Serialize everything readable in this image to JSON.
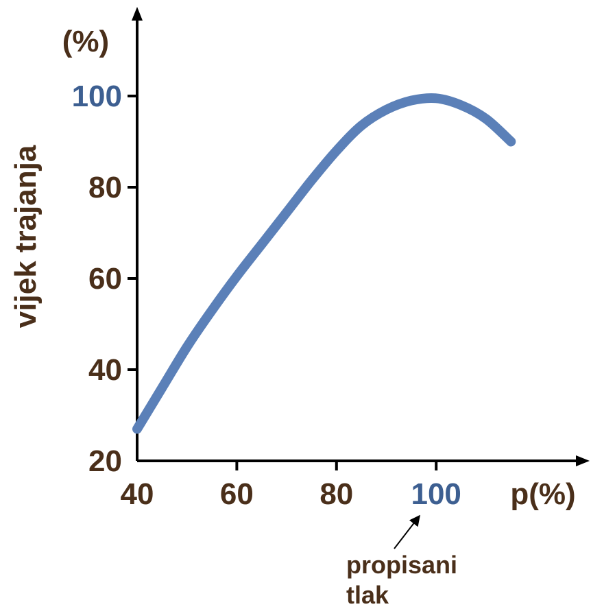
{
  "chart_data": {
    "type": "line",
    "ylabel": "vijek trajanja",
    "yunit": "(%)",
    "xlabel": "p(%)",
    "xlim": [
      40,
      122
    ],
    "ylim": [
      20,
      100
    ],
    "x_ticks": [
      40,
      60,
      80,
      100
    ],
    "y_ticks": [
      20,
      40,
      60,
      80,
      100
    ],
    "highlight_tick": 100,
    "annotation": {
      "lines": [
        "propisani",
        "tlak"
      ],
      "points_to_x": 100
    },
    "series": [
      {
        "x": [
          40,
          45,
          50,
          55,
          60,
          65,
          70,
          75,
          80,
          85,
          90,
          95,
          100,
          105,
          110,
          115
        ],
        "y": [
          27,
          36,
          45,
          53,
          60.5,
          67.5,
          74.5,
          81.5,
          88,
          93.5,
          97,
          99,
          99.5,
          98,
          95,
          90
        ]
      }
    ],
    "colors": {
      "line": "#5b80b8",
      "text": "#4a2f1a",
      "highlight": "#3d5f91",
      "axis": "#000000"
    }
  }
}
